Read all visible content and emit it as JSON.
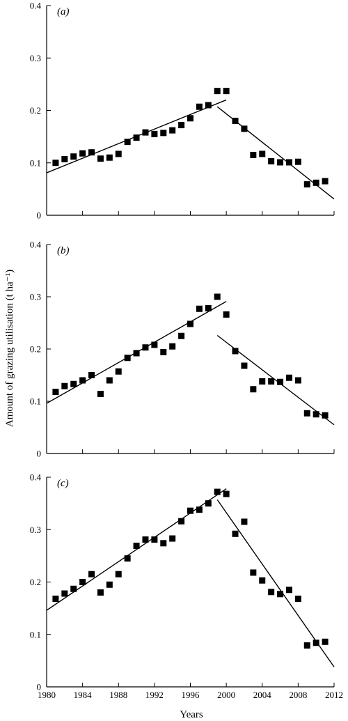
{
  "figure": {
    "ylabel": "Amount of grazing utilisation (t ha⁻¹)",
    "xlabel": "Years"
  },
  "chart_data": [
    {
      "type": "scatter",
      "panel_label": "(a)",
      "xlim": [
        1980,
        2012
      ],
      "ylim": [
        0,
        0.4
      ],
      "yticks": [
        0,
        0.1,
        0.2,
        0.3,
        0.4
      ],
      "ytick_labels": [
        "0",
        "0.1",
        "0.2",
        "0.3",
        "0.4"
      ],
      "xticks": [
        1980,
        1984,
        1988,
        1992,
        1996,
        2000,
        2004,
        2008,
        2012
      ],
      "xtick_labels": [],
      "grid": false,
      "points": {
        "x": [
          1981,
          1982,
          1983,
          1984,
          1985,
          1986,
          1987,
          1988,
          1989,
          1990,
          1991,
          1992,
          1993,
          1994,
          1995,
          1996,
          1997,
          1998,
          1999,
          2000,
          2001,
          2002,
          2003,
          2004,
          2005,
          2006,
          2007,
          2008,
          2009,
          2010,
          2011
        ],
        "y": [
          0.1,
          0.107,
          0.112,
          0.118,
          0.12,
          0.108,
          0.11,
          0.117,
          0.14,
          0.148,
          0.158,
          0.155,
          0.157,
          0.162,
          0.172,
          0.185,
          0.207,
          0.21,
          0.237,
          0.237,
          0.18,
          0.165,
          0.115,
          0.117,
          0.103,
          0.101,
          0.101,
          0.102,
          0.059,
          0.062,
          0.065
        ]
      },
      "trend_lines": [
        {
          "x": [
            1980,
            2000
          ],
          "y": [
            0.081,
            0.22
          ]
        },
        {
          "x": [
            1999,
            2012
          ],
          "y": [
            0.207,
            0.031
          ]
        }
      ]
    },
    {
      "type": "scatter",
      "panel_label": "(b)",
      "xlim": [
        1980,
        2012
      ],
      "ylim": [
        0,
        0.4
      ],
      "yticks": [
        0,
        0.1,
        0.2,
        0.3,
        0.4
      ],
      "ytick_labels": [
        "0",
        "0.1",
        "0.2",
        "0.3",
        "0.4"
      ],
      "xticks": [
        1980,
        1984,
        1988,
        1992,
        1996,
        2000,
        2004,
        2008,
        2012
      ],
      "xtick_labels": [],
      "grid": false,
      "points": {
        "x": [
          1981,
          1982,
          1983,
          1984,
          1985,
          1986,
          1987,
          1988,
          1989,
          1990,
          1991,
          1992,
          1993,
          1994,
          1995,
          1996,
          1997,
          1998,
          1999,
          2000,
          2001,
          2002,
          2003,
          2004,
          2005,
          2006,
          2007,
          2008,
          2009,
          2010,
          2011
        ],
        "y": [
          0.118,
          0.129,
          0.133,
          0.14,
          0.15,
          0.114,
          0.14,
          0.157,
          0.183,
          0.192,
          0.203,
          0.208,
          0.194,
          0.205,
          0.225,
          0.248,
          0.277,
          0.278,
          0.3,
          0.266,
          0.196,
          0.168,
          0.123,
          0.138,
          0.138,
          0.137,
          0.145,
          0.14,
          0.077,
          0.075,
          0.073
        ]
      },
      "trend_lines": [
        {
          "x": [
            1980,
            2000
          ],
          "y": [
            0.096,
            0.291
          ]
        },
        {
          "x": [
            1999,
            2012
          ],
          "y": [
            0.226,
            0.055
          ]
        }
      ]
    },
    {
      "type": "scatter",
      "panel_label": "(c)",
      "xlim": [
        1980,
        2012
      ],
      "ylim": [
        0,
        0.4
      ],
      "yticks": [
        0,
        0.1,
        0.2,
        0.3,
        0.4
      ],
      "ytick_labels": [
        "0",
        "0.1",
        "0.2",
        "0.3",
        "0.4"
      ],
      "xticks": [
        1980,
        1984,
        1988,
        1992,
        1996,
        2000,
        2004,
        2008,
        2012
      ],
      "xtick_labels": [
        "1980",
        "1984",
        "1988",
        "1992",
        "1996",
        "2000",
        "2004",
        "2008",
        "2012"
      ],
      "grid": false,
      "points": {
        "x": [
          1981,
          1982,
          1983,
          1984,
          1985,
          1986,
          1987,
          1988,
          1989,
          1990,
          1991,
          1992,
          1993,
          1994,
          1995,
          1996,
          1997,
          1998,
          1999,
          2000,
          2001,
          2002,
          2003,
          2004,
          2005,
          2006,
          2007,
          2008,
          2009,
          2010,
          2011
        ],
        "y": [
          0.168,
          0.178,
          0.187,
          0.2,
          0.215,
          0.18,
          0.195,
          0.215,
          0.245,
          0.269,
          0.281,
          0.281,
          0.274,
          0.283,
          0.316,
          0.336,
          0.338,
          0.35,
          0.372,
          0.368,
          0.292,
          0.315,
          0.218,
          0.203,
          0.181,
          0.177,
          0.185,
          0.168,
          0.079,
          0.084,
          0.086
        ]
      },
      "trend_lines": [
        {
          "x": [
            1980,
            2000
          ],
          "y": [
            0.146,
            0.378
          ]
        },
        {
          "x": [
            1999,
            2012
          ],
          "y": [
            0.357,
            0.038
          ]
        }
      ]
    }
  ]
}
